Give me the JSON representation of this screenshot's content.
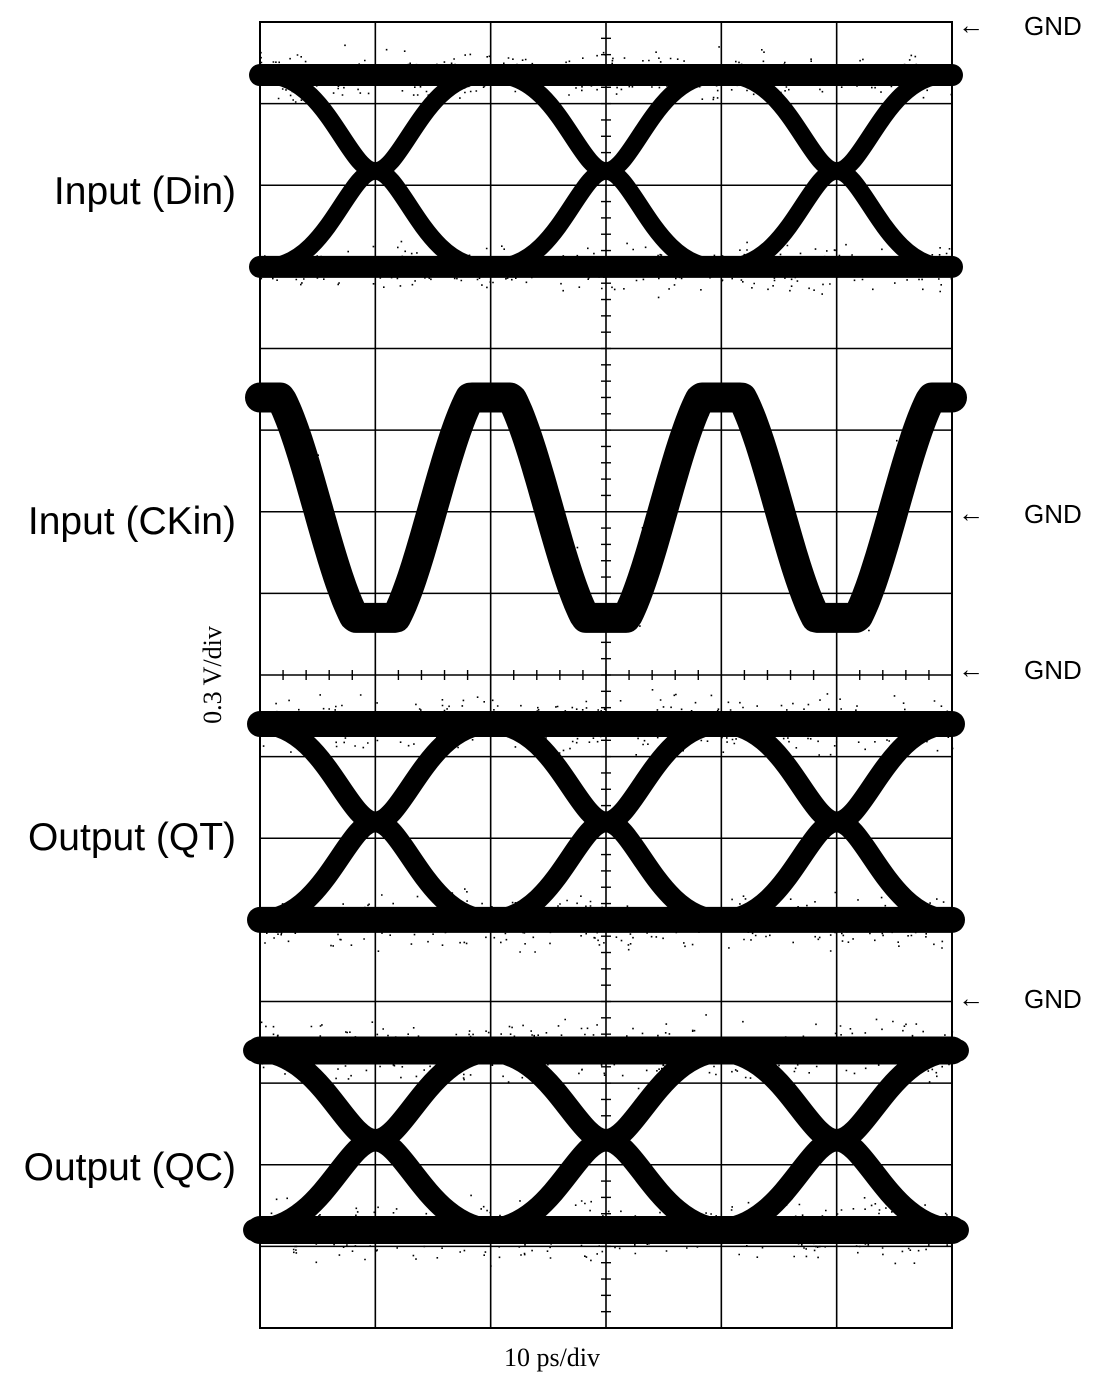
{
  "chart_data": {
    "type": "line",
    "description_type": "oscilloscope eye diagram",
    "xlabel": "10 ps/div",
    "ylabel": "0.3 V/div",
    "grid": true,
    "x_divisions": 6,
    "y_divisions": 16,
    "unit_interval_ps": 20,
    "clock_period_ps": 20,
    "traces": [
      {
        "name": "Input (Din)",
        "kind": "eye",
        "gnd_marker": "GND"
      },
      {
        "name": "Input (CKin)",
        "kind": "clock",
        "gnd_marker": "GND"
      },
      {
        "name": "Output (QT)",
        "kind": "eye",
        "gnd_marker": "GND"
      },
      {
        "name": "Output (QC)",
        "kind": "eye",
        "gnd_marker": "GND"
      }
    ],
    "gnd_label": "GND",
    "arrow_glyph": "←"
  }
}
